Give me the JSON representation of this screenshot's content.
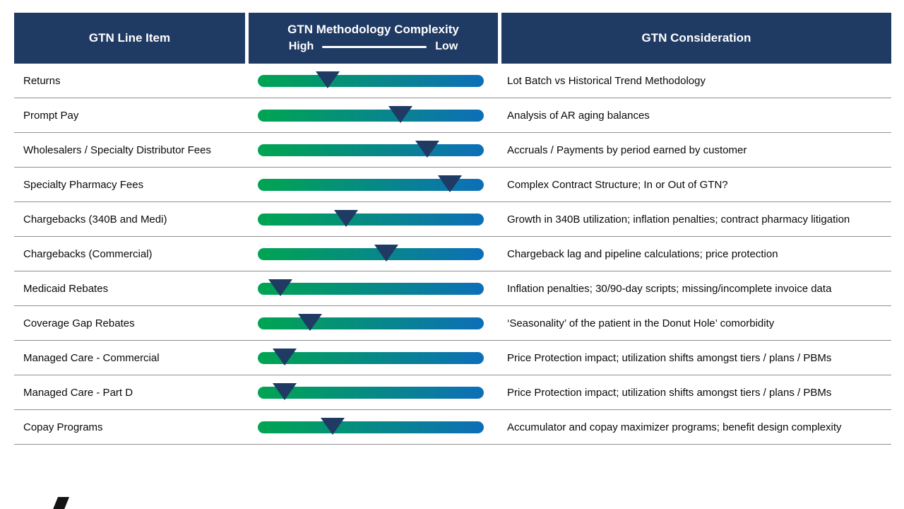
{
  "headers": {
    "line_item": "GTN Line Item",
    "complexity_title": "GTN Methodology Complexity",
    "complexity_high": "High",
    "complexity_low": "Low",
    "consideration": "GTN Consideration"
  },
  "colors": {
    "header_bg": "#1f3a63",
    "bar_green": "#00a551",
    "bar_blue": "#0d6fb8",
    "marker": "#1f3a63",
    "separator": "#8f8f8f"
  },
  "chart_data": {
    "type": "table",
    "title": "GTN Methodology Complexity",
    "columns": [
      "GTN Line Item",
      "GTN Methodology Complexity",
      "GTN Consideration"
    ],
    "complexity_scale": {
      "left_label": "High",
      "right_label": "Low",
      "range_pct": [
        0,
        100
      ],
      "note": "marker position percent from High end"
    },
    "rows": [
      {
        "line_item": "Returns",
        "complexity_pct": 31,
        "consideration": "Lot Batch vs Historical Trend Methodology"
      },
      {
        "line_item": "Prompt Pay",
        "complexity_pct": 63,
        "consideration": "Analysis of AR aging balances"
      },
      {
        "line_item": "Wholesalers / Specialty Distributor Fees",
        "complexity_pct": 75,
        "consideration": "Accruals / Payments by period earned by customer"
      },
      {
        "line_item": "Specialty Pharmacy Fees",
        "complexity_pct": 85,
        "consideration": "Complex Contract Structure; In or Out of GTN?"
      },
      {
        "line_item": "Chargebacks (340B and Medi)",
        "complexity_pct": 39,
        "consideration": "Growth in 340B utilization; inflation penalties; contract pharmacy litigation"
      },
      {
        "line_item": "Chargebacks (Commercial)",
        "complexity_pct": 57,
        "consideration": "Chargeback lag and pipeline calculations; price protection"
      },
      {
        "line_item": "Medicaid Rebates",
        "complexity_pct": 10,
        "consideration": "Inflation penalties; 30/90-day scripts; missing/incomplete invoice data"
      },
      {
        "line_item": "Coverage Gap Rebates",
        "complexity_pct": 23,
        "consideration": "‘Seasonality’ of the patient in the Donut Hole’ comorbidity"
      },
      {
        "line_item": "Managed Care - Commercial",
        "complexity_pct": 12,
        "consideration": "Price Protection impact; utilization shifts amongst tiers / plans / PBMs"
      },
      {
        "line_item": "Managed Care - Part D",
        "complexity_pct": 12,
        "consideration": "Price Protection impact; utilization shifts amongst tiers / plans / PBMs"
      },
      {
        "line_item": "Copay Programs",
        "complexity_pct": 33,
        "consideration": "Accumulator and copay maximizer programs; benefit design complexity"
      }
    ]
  }
}
